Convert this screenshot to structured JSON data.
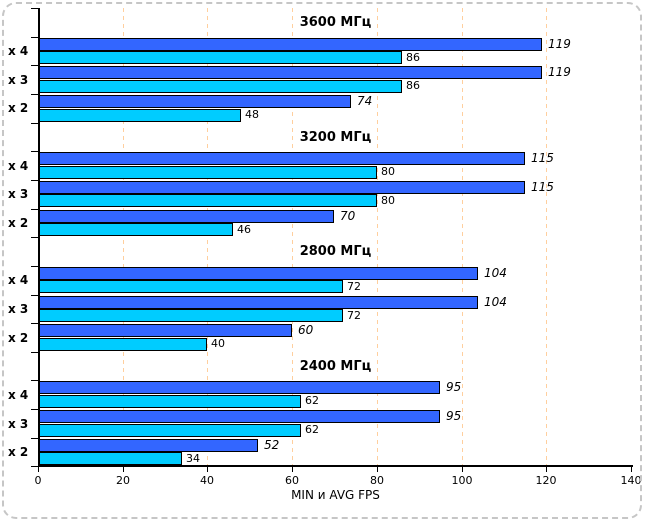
{
  "window": {
    "background": "#ffffff",
    "frame_border_color": "#c6c6c6"
  },
  "chart_data": {
    "type": "bar",
    "orientation": "horizontal",
    "title": "",
    "xlabel": "MIN и AVG FPS",
    "ylabel": "",
    "xlim": [
      0,
      140
    ],
    "x_ticks": [
      0,
      20,
      40,
      60,
      80,
      100,
      120,
      140
    ],
    "grid_values": [
      20,
      40,
      60,
      80,
      100,
      120
    ],
    "gridline_color": "#FFCF9E",
    "axis_color": "#000000",
    "legend": "none",
    "series": [
      {
        "name": "AVG",
        "color": "#3366FF",
        "label_style": "italic"
      },
      {
        "name": "MIN",
        "color": "#00CCFF",
        "label_style": "normal"
      }
    ],
    "groups": [
      {
        "title": "3600 МГц",
        "rows": [
          {
            "category": "x 4",
            "AVG": 119,
            "MIN": 86
          },
          {
            "category": "x 3",
            "AVG": 119,
            "MIN": 86
          },
          {
            "category": "x 2",
            "AVG": 74,
            "MIN": 48
          }
        ]
      },
      {
        "title": "3200 МГц",
        "rows": [
          {
            "category": "x 4",
            "AVG": 115,
            "MIN": 80
          },
          {
            "category": "x 3",
            "AVG": 115,
            "MIN": 80
          },
          {
            "category": "x 2",
            "AVG": 70,
            "MIN": 46
          }
        ]
      },
      {
        "title": "2800 МГц",
        "rows": [
          {
            "category": "x 4",
            "AVG": 104,
            "MIN": 72
          },
          {
            "category": "x 3",
            "AVG": 104,
            "MIN": 72
          },
          {
            "category": "x 2",
            "AVG": 60,
            "MIN": 40
          }
        ]
      },
      {
        "title": "2400 МГц",
        "rows": [
          {
            "category": "x 4",
            "AVG": 95,
            "MIN": 62
          },
          {
            "category": "x 3",
            "AVG": 95,
            "MIN": 62
          },
          {
            "category": "x 2",
            "AVG": 52,
            "MIN": 34
          }
        ]
      }
    ]
  }
}
